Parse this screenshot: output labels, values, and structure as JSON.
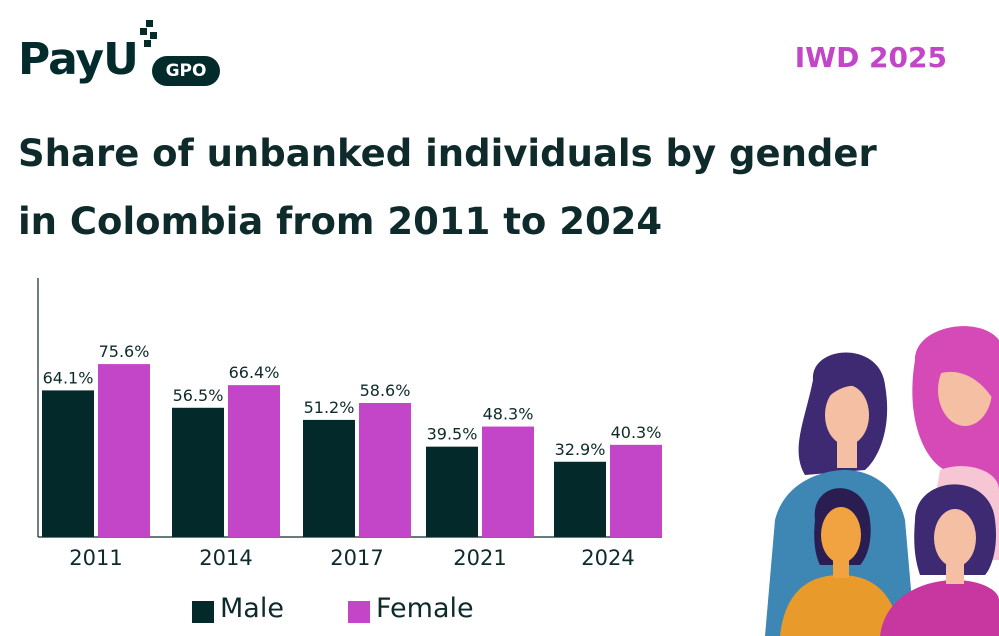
{
  "brand": {
    "logo_text": "PayU",
    "logo_badge": "GPO",
    "tag": "IWD 2025"
  },
  "title": "Share of unbanked individuals by gender in Colombia from 2011 to 2024",
  "colors": {
    "male": "#03292a",
    "female": "#c246c7",
    "brand": "#042b2c",
    "accent": "#c246c7"
  },
  "illustration": "group-of-women-illustration",
  "chart_data": {
    "type": "bar",
    "title": "Share of unbanked individuals by gender in Colombia from 2011 to 2024",
    "categories": [
      "2011",
      "2014",
      "2017",
      "2021",
      "2024"
    ],
    "series": [
      {
        "name": "Male",
        "values": [
          64.1,
          56.5,
          51.2,
          39.5,
          32.9
        ],
        "labels": [
          "64.1%",
          "56.5%",
          "51.2%",
          "39.5%",
          "32.9%"
        ]
      },
      {
        "name": "Female",
        "values": [
          75.6,
          66.4,
          58.6,
          48.3,
          40.3
        ],
        "labels": [
          "75.6%",
          "66.4%",
          "58.6%",
          "48.3%",
          "40.3%"
        ]
      }
    ],
    "xlabel": "",
    "ylabel": "",
    "ylim": [
      0,
      100
    ],
    "grid": false,
    "legend": "bottom-center"
  }
}
